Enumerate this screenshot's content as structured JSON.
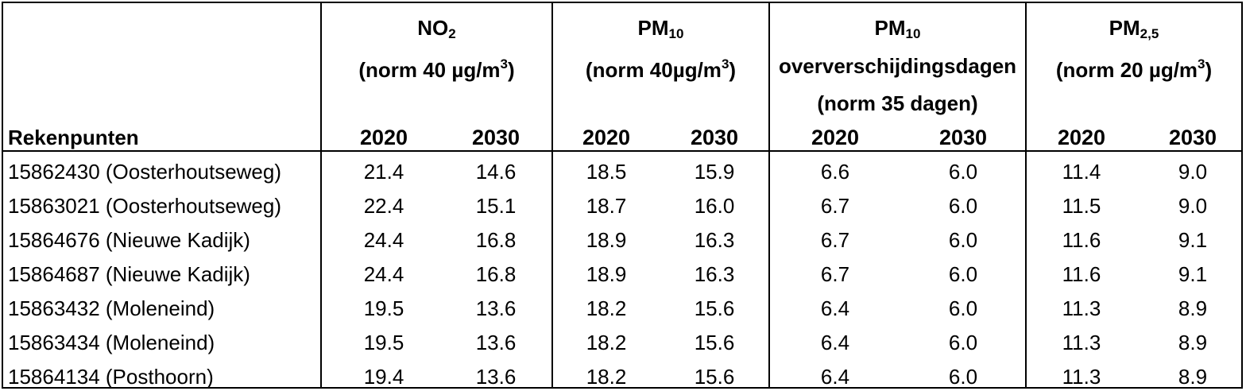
{
  "header": {
    "row_label": "Rekenpunten",
    "groups": [
      {
        "name": "NO",
        "sub": "2",
        "norm_prefix": "(norm 40 µg/m",
        "norm_sup": "3",
        "norm_suffix": ")"
      },
      {
        "name": "PM",
        "sub": "10",
        "norm_prefix": "(norm 40µg/m",
        "norm_sup": "3",
        "norm_suffix": ")"
      },
      {
        "name": "PM",
        "sub": "10",
        "line2": "oververschijdingsdagen",
        "line3": "(norm 35 dagen)"
      },
      {
        "name": "PM",
        "sub": "2,5",
        "norm_prefix": "(norm 20 µg/m",
        "norm_sup": "3",
        "norm_suffix": ")"
      }
    ],
    "years": [
      "2020",
      "2030",
      "2020",
      "2030",
      "2020",
      "2030",
      "2020",
      "2030"
    ]
  },
  "rows": [
    {
      "label": "15862430 (Oosterhoutseweg)",
      "values": [
        "21.4",
        "14.6",
        "18.5",
        "15.9",
        "6.6",
        "6.0",
        "11.4",
        "9.0"
      ]
    },
    {
      "label": "15863021 (Oosterhoutseweg)",
      "values": [
        "22.4",
        "15.1",
        "18.7",
        "16.0",
        "6.7",
        "6.0",
        "11.5",
        "9.0"
      ]
    },
    {
      "label": "15864676 (Nieuwe Kadijk)",
      "values": [
        "24.4",
        "16.8",
        "18.9",
        "16.3",
        "6.7",
        "6.0",
        "11.6",
        "9.1"
      ]
    },
    {
      "label": "15864687 (Nieuwe Kadijk)",
      "values": [
        "24.4",
        "16.8",
        "18.9",
        "16.3",
        "6.7",
        "6.0",
        "11.6",
        "9.1"
      ]
    },
    {
      "label": "15863432 (Moleneind)",
      "values": [
        "19.5",
        "13.6",
        "18.2",
        "15.6",
        "6.4",
        "6.0",
        "11.3",
        "8.9"
      ]
    },
    {
      "label": "15863434 (Moleneind)",
      "values": [
        "19.5",
        "13.6",
        "18.2",
        "15.6",
        "6.4",
        "6.0",
        "11.3",
        "8.9"
      ]
    },
    {
      "label": "15864134 (Posthoorn)",
      "values": [
        "19.4",
        "13.6",
        "18.2",
        "15.6",
        "6.4",
        "6.0",
        "11.3",
        "8.9"
      ]
    }
  ]
}
